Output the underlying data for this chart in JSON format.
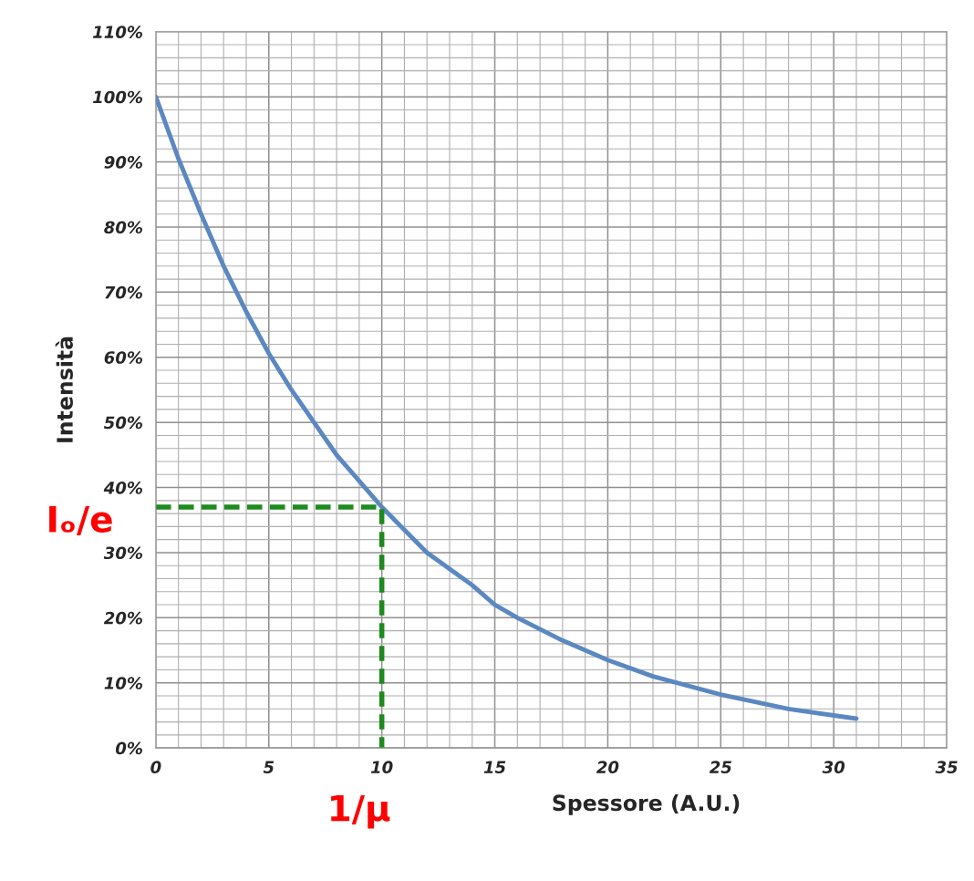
{
  "chart_data": {
    "type": "line",
    "xlabel": "Spessore (A.U.)",
    "ylabel": "Intensità",
    "xlim": [
      0,
      35
    ],
    "xticks": [
      0,
      5,
      10,
      15,
      20,
      25,
      30,
      35
    ],
    "ylim": [
      0,
      110
    ],
    "yticks": [
      {
        "value": 0,
        "label": "0%"
      },
      {
        "value": 10,
        "label": "10%"
      },
      {
        "value": 20,
        "label": "20%"
      },
      {
        "value": 30,
        "label": "30%"
      },
      {
        "value": 40,
        "label": "40%"
      },
      {
        "value": 50,
        "label": "50%"
      },
      {
        "value": 60,
        "label": "60%"
      },
      {
        "value": 70,
        "label": "70%"
      },
      {
        "value": 80,
        "label": "80%"
      },
      {
        "value": 90,
        "label": "90%"
      },
      {
        "value": 100,
        "label": "100%"
      },
      {
        "value": 110,
        "label": "110%"
      }
    ],
    "grid": true,
    "marker": "none",
    "series": [
      {
        "color": "#5b88c0",
        "line_style": "solid",
        "x": [
          0,
          1,
          2,
          3,
          4,
          5,
          6,
          7,
          8,
          9,
          10,
          12,
          14,
          15,
          16,
          18,
          20,
          22,
          25,
          28,
          31
        ],
        "values": [
          100,
          90.5,
          82,
          74,
          67,
          60.6,
          55,
          50,
          45,
          41,
          37,
          30,
          25,
          22,
          20,
          16.5,
          13.5,
          11,
          8.2,
          6,
          4.5
        ]
      },
      {
        "color": "#1e8a1e",
        "line_style": "dashed",
        "x": [
          0,
          10,
          10
        ],
        "values": [
          37,
          37,
          0
        ]
      }
    ],
    "annotations": [
      {
        "text": "Iₒ/e",
        "x": 0,
        "y": 37
      },
      {
        "text": "1/μ",
        "x": 10,
        "y": 0
      }
    ]
  }
}
